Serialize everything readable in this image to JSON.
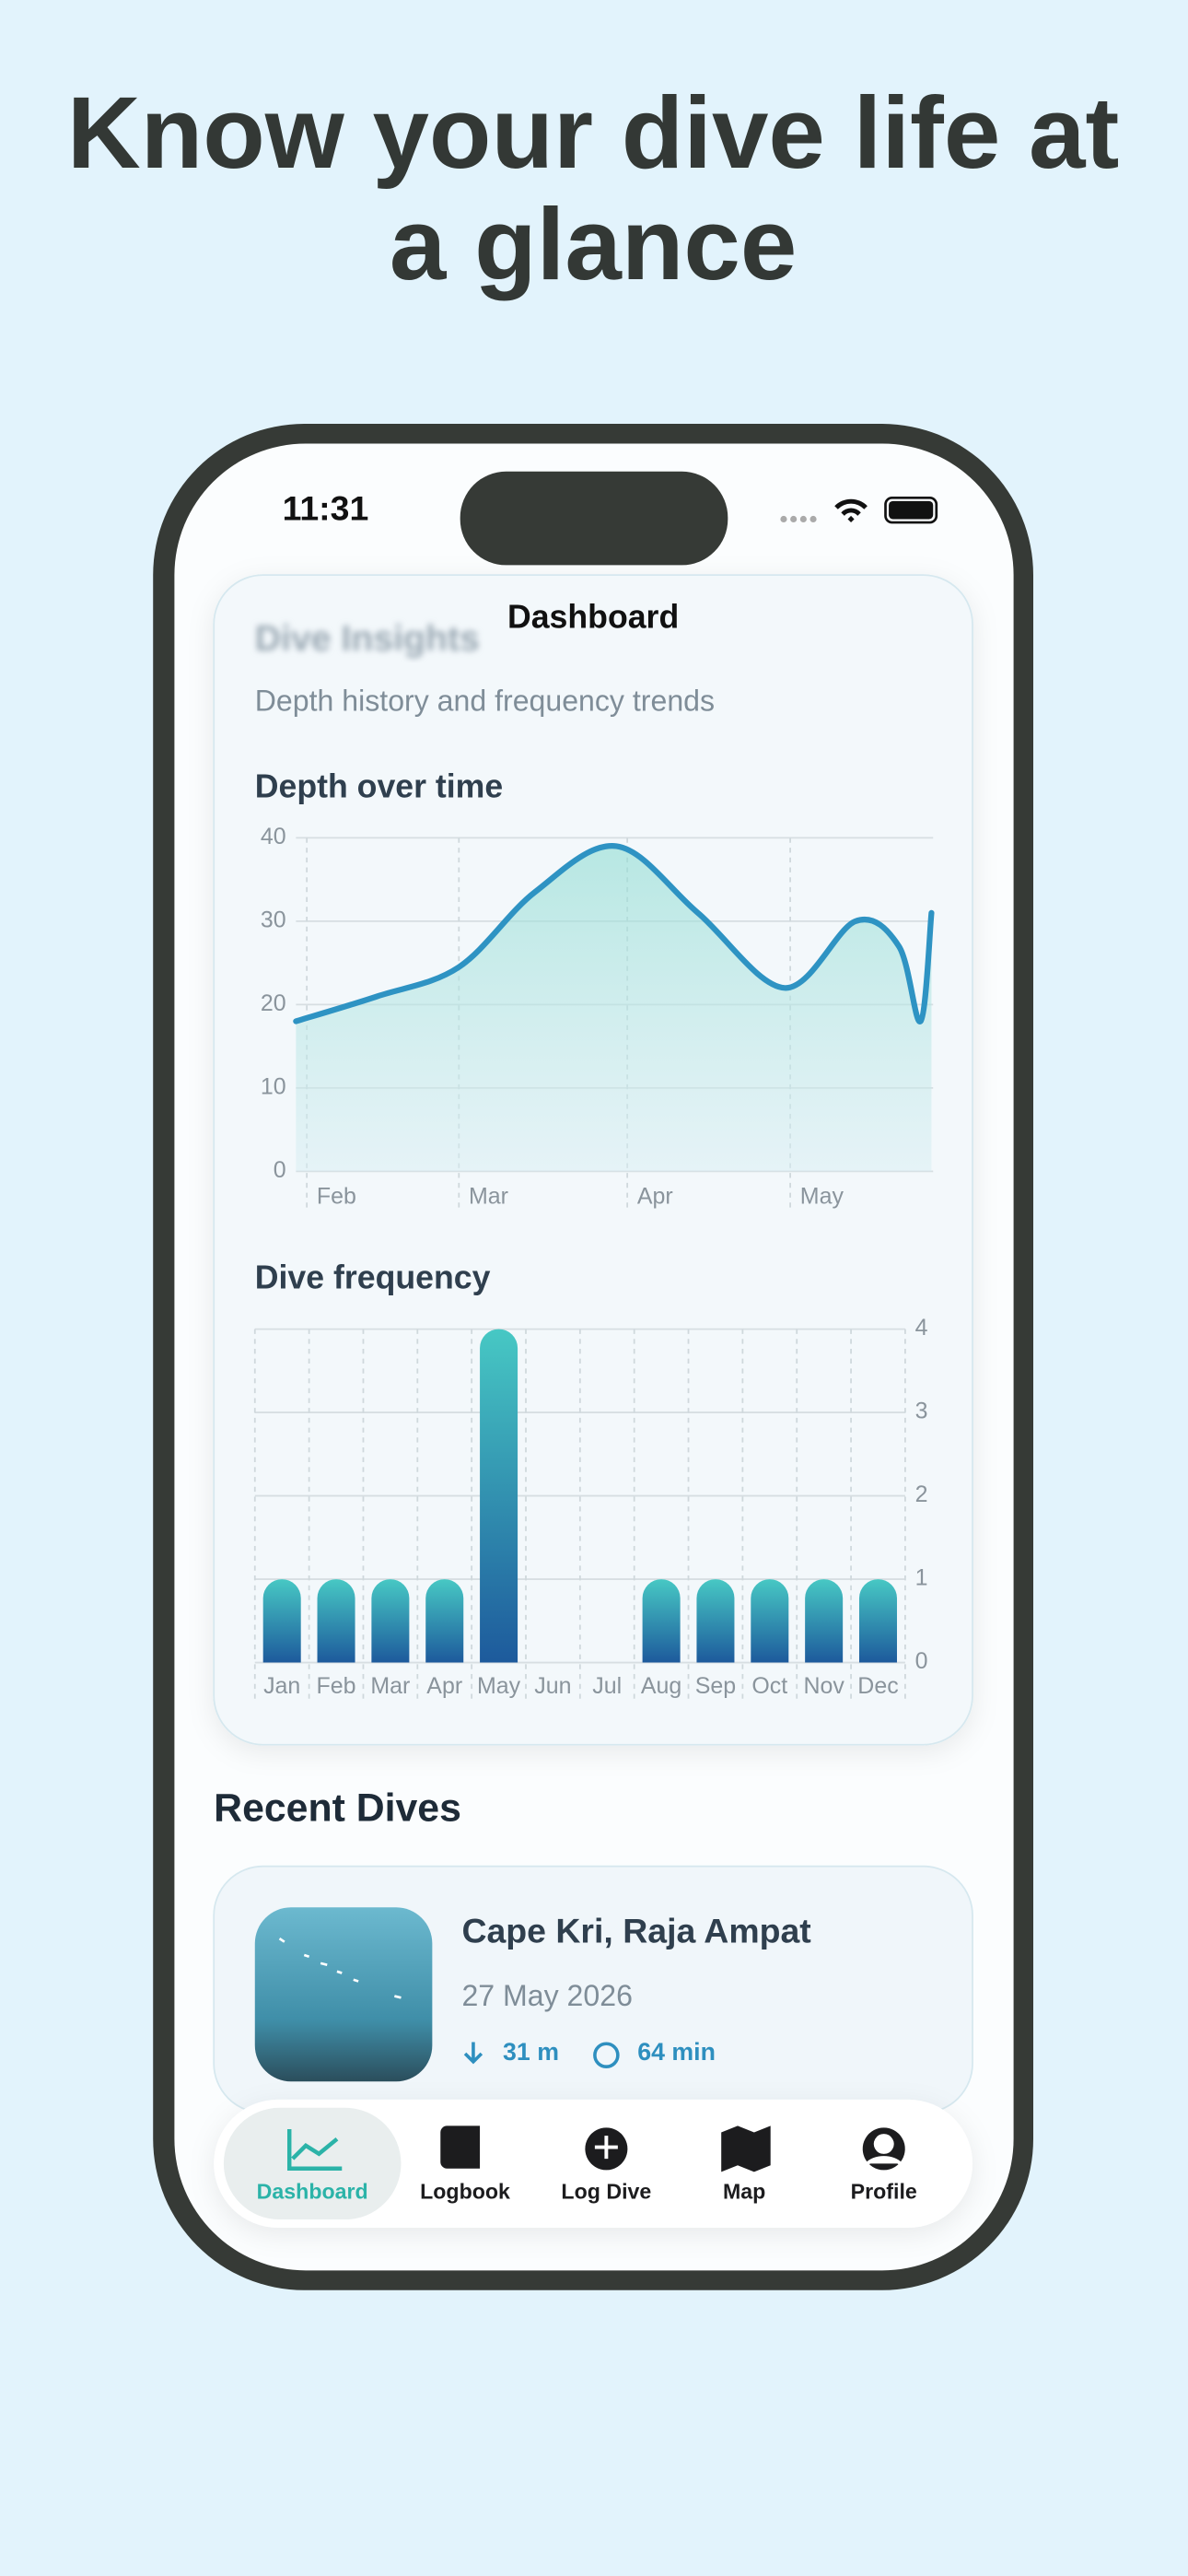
{
  "status_bar": {
    "time": "11:31"
  },
  "headline": [
    "Know your dive life at",
    "a glance"
  ],
  "nav_title": "Dashboard",
  "insights": {
    "title": "Dive Insights",
    "subtitle": "Depth history and frequency trends"
  },
  "chart_data": [
    {
      "type": "area",
      "title": "Depth over time",
      "x": [
        30,
        45,
        60,
        74,
        89,
        104,
        120,
        133,
        141,
        145,
        147
      ],
      "values": [
        18,
        21,
        24.5,
        33.5,
        39,
        31,
        22,
        30,
        27,
        18,
        31
      ],
      "xlim": [
        30,
        147
      ],
      "xticks": [
        {
          "value": 32,
          "label": "Feb"
        },
        {
          "value": 60,
          "label": "Mar"
        },
        {
          "value": 91,
          "label": "Apr"
        },
        {
          "value": 121,
          "label": "May"
        }
      ],
      "ylim": [
        0,
        40
      ],
      "yticks": [
        0,
        10,
        20,
        30,
        40
      ],
      "color": "#2e93c3",
      "grid": true
    },
    {
      "type": "bar",
      "title": "Dive frequency",
      "categories": [
        "Jan",
        "Feb",
        "Mar",
        "Apr",
        "May",
        "Jun",
        "Jul",
        "Aug",
        "Sep",
        "Oct",
        "Nov",
        "Dec"
      ],
      "values": [
        1,
        1,
        1,
        1,
        4,
        0,
        0,
        1,
        1,
        1,
        1,
        1
      ],
      "ylim": [
        0,
        4
      ],
      "yticks": [
        0,
        1,
        2,
        3,
        4
      ],
      "color": [
        "#47c8c4",
        "#1d5a9c"
      ],
      "grid": true,
      "y_axis_side": "right"
    }
  ],
  "recent_dives": {
    "title": "Recent Dives",
    "items": [
      {
        "site": "Cape Kri, Raja Ampat",
        "date": "27 May 2026",
        "depth": "31 m",
        "duration": "64 min"
      }
    ]
  },
  "tab_bar": {
    "tabs": [
      "Dashboard",
      "Logbook",
      "Log Dive",
      "Map",
      "Profile"
    ],
    "selected": 0
  }
}
